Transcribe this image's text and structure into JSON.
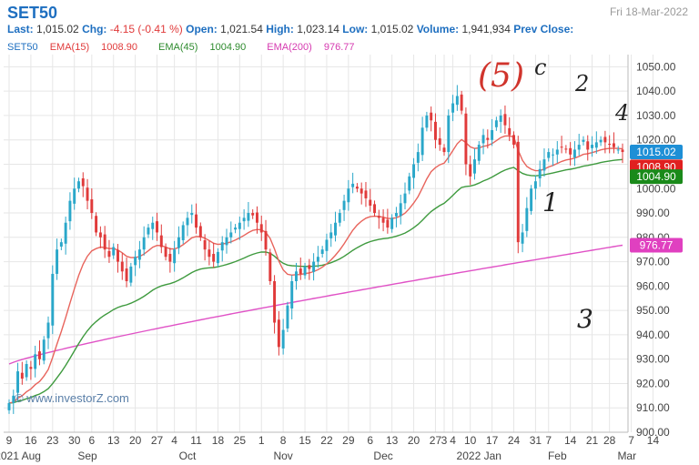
{
  "header": {
    "symbol": "SET50",
    "date": "Fri 18-Mar-2022",
    "last_label": "Last:",
    "last": "1,015.02",
    "chg_label": "Chg:",
    "chg": "-4.15 (-0.41 %)",
    "open_label": "Open:",
    "open": "1,021.54",
    "high_label": "High:",
    "high": "1,023.14",
    "low_label": "Low:",
    "low": "1,015.02",
    "volume_label": "Volume:",
    "volume": "1,941,934",
    "prev_close_label": "Prev Close:",
    "prev_close": ""
  },
  "legend": [
    {
      "label": "SET50",
      "color": "#1e6fc0"
    },
    {
      "label": "EMA(15)",
      "value": "1008.90",
      "color": "#e03a3a"
    },
    {
      "label": "EMA(45)",
      "value": "1004.90",
      "color": "#2e8b2e"
    },
    {
      "label": "EMA(200)",
      "value": "976.77",
      "color": "#d63ab0"
    }
  ],
  "watermark": "www.investorZ.com",
  "annotations": [
    "(5)",
    "c",
    "2",
    "4",
    "1",
    "3"
  ],
  "colors": {
    "up": "#e03a3a",
    "down": "#2aa7c9",
    "grid": "#e6e6e6",
    "ema15": "#e8645c",
    "ema45": "#3e9a3e",
    "ema200": "#e052c6"
  },
  "chart_data": {
    "type": "candlestick",
    "ylim": [
      900,
      1055
    ],
    "yticks": [
      "1050.00",
      "1040.00",
      "1030.00",
      "1020.00",
      "1010.00",
      "1000.00",
      "990.00",
      "980.00",
      "970.00",
      "960.00",
      "950.00",
      "940.00",
      "930.00",
      "920.00",
      "910.00",
      "900.00"
    ],
    "xticks": [
      {
        "label": "9",
        "idx": 0
      },
      {
        "label": "16",
        "idx": 5
      },
      {
        "label": "23",
        "idx": 10
      },
      {
        "label": "30",
        "idx": 15
      },
      {
        "label": "6",
        "idx": 19
      },
      {
        "label": "13",
        "idx": 24
      },
      {
        "label": "20",
        "idx": 29
      },
      {
        "label": "27",
        "idx": 34
      },
      {
        "label": "4",
        "idx": 38
      },
      {
        "label": "11",
        "idx": 43
      },
      {
        "label": "18",
        "idx": 48
      },
      {
        "label": "25",
        "idx": 53
      },
      {
        "label": "1",
        "idx": 58
      },
      {
        "label": "8",
        "idx": 63
      },
      {
        "label": "15",
        "idx": 68
      },
      {
        "label": "22",
        "idx": 73
      },
      {
        "label": "29",
        "idx": 78
      },
      {
        "label": "6",
        "idx": 83
      },
      {
        "label": "13",
        "idx": 88
      },
      {
        "label": "20",
        "idx": 93
      },
      {
        "label": "27",
        "idx": 98
      },
      {
        "label": "3",
        "idx": 100
      },
      {
        "label": "4",
        "idx": 102
      },
      {
        "label": "10",
        "idx": 106
      },
      {
        "label": "17",
        "idx": 111
      },
      {
        "label": "24",
        "idx": 116
      },
      {
        "label": "31",
        "idx": 121
      },
      {
        "label": "7",
        "idx": 124
      },
      {
        "label": "14",
        "idx": 129
      },
      {
        "label": "21",
        "idx": 134
      },
      {
        "label": "28",
        "idx": 138
      },
      {
        "label": "7",
        "idx": 143
      },
      {
        "label": "14",
        "idx": 148
      }
    ],
    "xgroup_labels": [
      {
        "label": "2021 Aug",
        "idx": 2
      },
      {
        "label": "Sep",
        "idx": 18
      },
      {
        "label": "Oct",
        "idx": 41
      },
      {
        "label": "Nov",
        "idx": 63
      },
      {
        "label": "Dec",
        "idx": 86
      },
      {
        "label": "2022 Jan",
        "idx": 108
      },
      {
        "label": "Feb",
        "idx": 126
      },
      {
        "label": "Mar",
        "idx": 142
      }
    ],
    "price_tags": [
      {
        "text": "1015.02",
        "value": 1015.02,
        "color": "#1e8fd6"
      },
      {
        "text": "1008.90",
        "value": 1008.9,
        "color": "#e02020"
      },
      {
        "text": "1004.90",
        "value": 1004.9,
        "color": "#1a8a1a"
      },
      {
        "text": "976.77",
        "value": 976.77,
        "color": "#e040c0"
      }
    ],
    "closes": [
      912,
      915,
      925,
      922,
      928,
      926,
      932,
      930,
      938,
      945,
      965,
      975,
      978,
      986,
      995,
      1000,
      1003,
      1001,
      995,
      990,
      982,
      980,
      975,
      972,
      976,
      970,
      966,
      962,
      968,
      972,
      975,
      980,
      984,
      986,
      982,
      976,
      972,
      970,
      975,
      980,
      985,
      988,
      990,
      984,
      980,
      975,
      972,
      970,
      974,
      978,
      980,
      982,
      984,
      986,
      988,
      990,
      989,
      986,
      982,
      975,
      962,
      945,
      935,
      942,
      952,
      962,
      966,
      965,
      968,
      967,
      970,
      972,
      975,
      979,
      982,
      986,
      990,
      995,
      1000,
      1002,
      1000,
      998,
      996,
      993,
      990,
      988,
      986,
      984,
      988,
      990,
      994,
      998,
      1005,
      1010,
      1015,
      1025,
      1030,
      1028,
      1020,
      1018,
      1015,
      1030,
      1035,
      1038,
      1032,
      1010,
      1005,
      1012,
      1018,
      1022,
      1020,
      1024,
      1028,
      1030,
      1026,
      1022,
      1018,
      978,
      982,
      992,
      1000,
      1003,
      1008,
      1012,
      1015,
      1014,
      1016,
      1017,
      1016,
      1014,
      1016,
      1018,
      1020,
      1016,
      1018,
      1019,
      1020,
      1019,
      1018,
      1017,
      1016,
      1015.02
    ]
  }
}
